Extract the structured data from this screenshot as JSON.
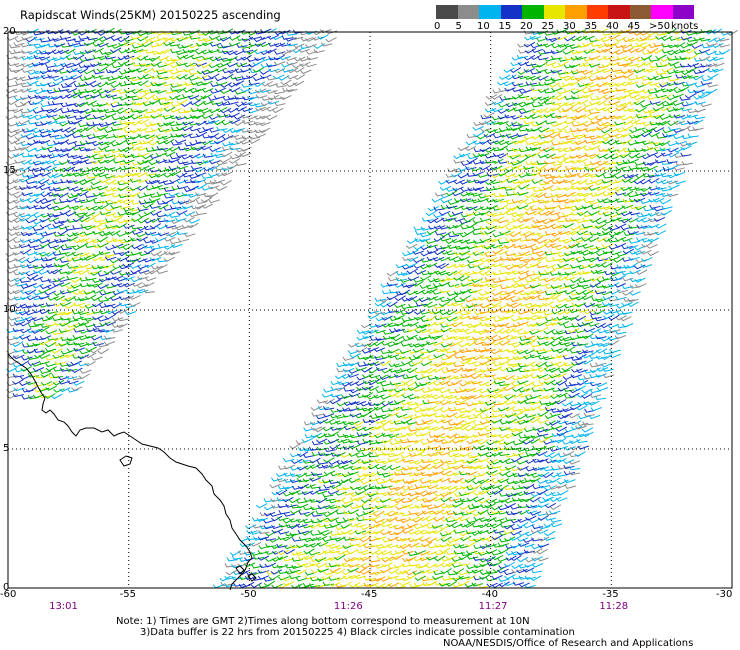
{
  "title": "Rapidscat Winds(25KM) 20150225 ascending",
  "legend": {
    "unit": "knots",
    "bins": [
      {
        "label": "0",
        "color": "#4a4a4a"
      },
      {
        "label": "5",
        "color": "#8c8c8c"
      },
      {
        "label": "10",
        "color": "#00b4f0"
      },
      {
        "label": "15",
        "color": "#1432c8"
      },
      {
        "label": "20",
        "color": "#00b400"
      },
      {
        "label": "25",
        "color": "#e6e600"
      },
      {
        "label": "30",
        "color": "#ffa000"
      },
      {
        "label": "35",
        "color": "#ff3c00"
      },
      {
        "label": "40",
        "color": "#c81414"
      },
      {
        "label": "45",
        "color": "#8c5a32"
      },
      {
        "label": ">50",
        "color": "#ff00ff"
      },
      {
        "label": "",
        "color": "#8c00c8"
      }
    ]
  },
  "axes": {
    "lat_ticks": [
      "20",
      "15",
      "10",
      "5",
      "0"
    ],
    "lon_ticks": [
      "-60",
      "-55",
      "-50",
      "-45",
      "-40",
      "-35",
      "-30"
    ],
    "lat_range": [
      0,
      20
    ],
    "lon_range": [
      -60,
      -30
    ]
  },
  "times": [
    {
      "label": "13:01",
      "lon": -57.8
    },
    {
      "label": "11:26",
      "lon": -46.0
    },
    {
      "label": "11:27",
      "lon": -40.0
    },
    {
      "label": "11:28",
      "lon": -35.0
    }
  ],
  "notes": [
    "Note: 1) Times are GMT 2)Times along bottom correspond to measurement at 10N",
    "3)Data buffer is 22 hrs from 20150225 4) Black circles indicate possible contamination"
  ],
  "credit": "NOAA/NESDIS/Office of Research and Applications",
  "swaths": [
    {
      "name": "west",
      "lat_top": 20,
      "lon_left_top": -60,
      "lon_right_top": -46.4,
      "lat_bottom": 6.8,
      "lon_left_bottom": -60,
      "lon_right_bottom": -57.5,
      "dominant_speed_knots": 20
    },
    {
      "name": "east",
      "lat_top": 20,
      "lon_left_top": -38.5,
      "lon_right_top": -30,
      "lat_bottom": 0,
      "lon_left_bottom": -51.5,
      "lon_right_bottom": -38.3,
      "dominant_speed_knots": 25
    }
  ]
}
